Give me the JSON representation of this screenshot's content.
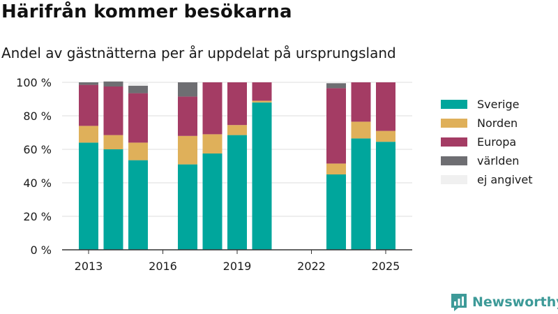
{
  "title": "Härifrån kommer besökarna",
  "subtitle": "Andel av gästnätterna per år uppdelat på ursprungsland",
  "brand": {
    "name": "Newsworthy",
    "icon": "newsworthy-logo-icon"
  },
  "chart_data": {
    "type": "bar",
    "stacked": true,
    "categories": [
      2013,
      2014,
      2015,
      2016,
      2017,
      2018,
      2019,
      2020,
      2021,
      2022,
      2023,
      2024,
      2025
    ],
    "series": [
      {
        "name": "Sverige",
        "color": "#00a69c",
        "values": [
          64,
          60,
          53.5,
          null,
          51,
          57.5,
          68.5,
          88,
          null,
          null,
          45,
          66.5,
          64.5
        ]
      },
      {
        "name": "Norden",
        "color": "#dfb05a",
        "values": [
          10,
          8.5,
          10.5,
          null,
          17,
          11.5,
          6,
          1,
          null,
          null,
          6.5,
          10,
          6.5
        ]
      },
      {
        "name": "Europa",
        "color": "#a43c64",
        "values": [
          24.5,
          29,
          29.5,
          null,
          23.5,
          31,
          25.5,
          11,
          null,
          null,
          45,
          23.5,
          29
        ]
      },
      {
        "name": "världen",
        "color": "#6e6e72",
        "values": [
          1.5,
          3,
          4.5,
          null,
          8.5,
          0,
          0,
          0,
          null,
          null,
          3,
          0,
          0
        ]
      },
      {
        "name": "ej angivet",
        "color": "#f0f0f0",
        "values": [
          0,
          0,
          2,
          null,
          0,
          0,
          0,
          0,
          null,
          null,
          0.5,
          0,
          0
        ]
      }
    ],
    "x_ticks": [
      "2013",
      "2016",
      "2019",
      "2022",
      "2025"
    ],
    "y_ticks": [
      "0 %",
      "20 %",
      "40 %",
      "60 %",
      "80 %",
      "100 %"
    ],
    "ylim": [
      0,
      100
    ],
    "xlabel": "",
    "ylabel": "",
    "grid": true,
    "legend_position": "right"
  }
}
